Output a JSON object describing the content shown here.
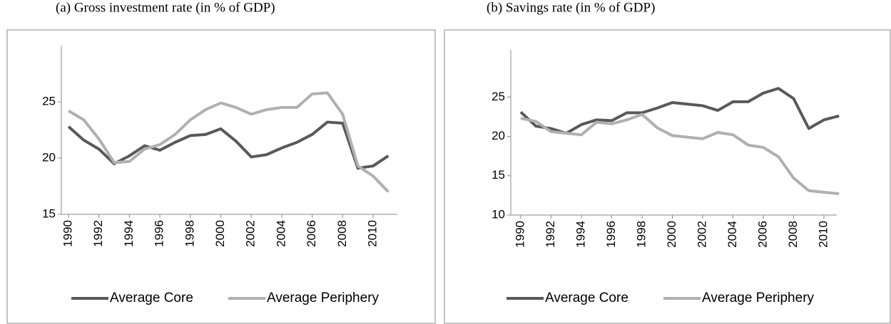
{
  "chart_data": [
    {
      "type": "line",
      "title": "(a)   Gross investment rate (in % of GDP)",
      "x": [
        1990,
        1991,
        1992,
        1993,
        1994,
        1995,
        1996,
        1997,
        1998,
        1999,
        2000,
        2001,
        2002,
        2003,
        2004,
        2005,
        2006,
        2007,
        2008,
        2009,
        2010,
        2011
      ],
      "xticks": [
        1990,
        1992,
        1994,
        1996,
        1998,
        2000,
        2002,
        2004,
        2006,
        2008,
        2010
      ],
      "ylim": [
        15,
        30
      ],
      "yticks": [
        15,
        20,
        25
      ],
      "series": [
        {
          "name": "Average Core",
          "color": "#595959",
          "values": [
            22.8,
            21.6,
            20.8,
            19.5,
            20.2,
            21.1,
            20.7,
            21.4,
            22.0,
            22.1,
            22.6,
            21.5,
            20.1,
            20.3,
            20.9,
            21.4,
            22.1,
            23.2,
            23.1,
            19.1,
            19.3,
            20.2
          ]
        },
        {
          "name": "Average Periphery",
          "color": "#b0b0b0",
          "values": [
            24.2,
            23.4,
            21.7,
            19.6,
            19.7,
            20.8,
            21.2,
            22.1,
            23.4,
            24.3,
            24.9,
            24.5,
            23.9,
            24.3,
            24.5,
            24.5,
            25.7,
            25.8,
            23.9,
            19.3,
            18.4,
            17.0
          ]
        }
      ]
    },
    {
      "type": "line",
      "title": "(b)   Savings rate (in % of GDP)",
      "x": [
        1990,
        1991,
        1992,
        1993,
        1994,
        1995,
        1996,
        1997,
        1998,
        1999,
        2000,
        2001,
        2002,
        2003,
        2004,
        2005,
        2006,
        2007,
        2008,
        2009,
        2010,
        2011
      ],
      "xticks": [
        1990,
        1992,
        1994,
        1996,
        1998,
        2000,
        2002,
        2004,
        2006,
        2008,
        2010
      ],
      "ylim": [
        10,
        31
      ],
      "yticks": [
        10,
        15,
        20,
        25
      ],
      "series": [
        {
          "name": "Average Core",
          "color": "#595959",
          "values": [
            23.1,
            21.3,
            21.0,
            20.4,
            21.5,
            22.1,
            22.0,
            23.0,
            23.0,
            23.6,
            24.3,
            24.1,
            23.9,
            23.3,
            24.4,
            24.4,
            25.5,
            26.1,
            24.8,
            21.0,
            22.1,
            22.6
          ]
        },
        {
          "name": "Average Periphery",
          "color": "#b0b0b0",
          "values": [
            22.3,
            21.9,
            20.6,
            20.4,
            20.2,
            21.8,
            21.6,
            22.1,
            22.8,
            21.1,
            20.1,
            19.9,
            19.7,
            20.5,
            20.2,
            18.9,
            18.6,
            17.4,
            14.7,
            13.1,
            12.9,
            12.7
          ]
        }
      ]
    }
  ]
}
